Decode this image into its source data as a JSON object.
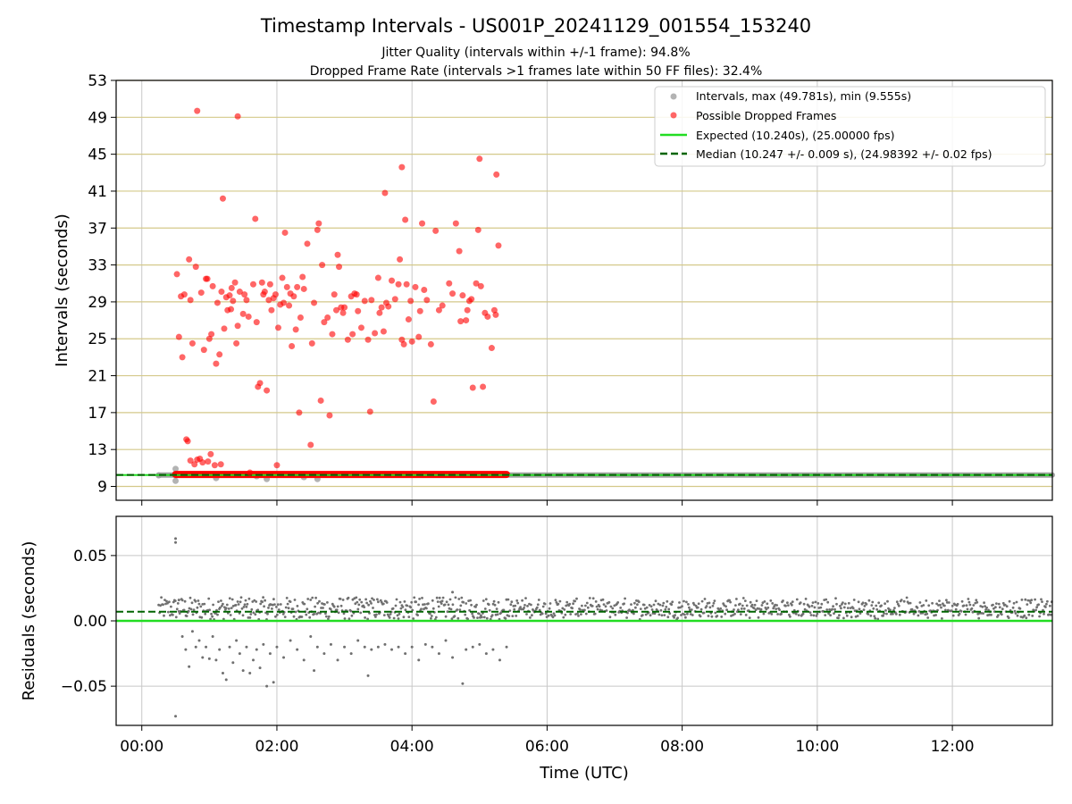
{
  "figure": {
    "title": "Timestamp Intervals - US001P_20241129_001554_153240",
    "subtitle_1": "Jitter Quality (intervals within +/-1 frame): 94.8%",
    "subtitle_2": "Dropped Frame Rate (intervals >1 frames late within 50 FF files): 32.4%"
  },
  "colors": {
    "intervals": "#999999",
    "dropped": "#ff0000",
    "expected": "#22dd22",
    "median": "#006400",
    "hgrid_top": "#d4c98a",
    "grid": "#c8c8c8",
    "residual_points": "#707070"
  },
  "chart_data": [
    {
      "type": "scatter",
      "panel": "top",
      "xlabel": "",
      "ylabel": "Intervals (seconds)",
      "x_unit": "hours (UTC)",
      "xlim": [
        -0.38,
        13.48
      ],
      "ylim": [
        7.5,
        53
      ],
      "x_ticks": [
        0,
        2,
        4,
        6,
        8,
        10,
        12
      ],
      "y_ticks": [
        9,
        13,
        17,
        21,
        25,
        29,
        33,
        37,
        41,
        45,
        49,
        53
      ],
      "y_tick_labels": [
        "9",
        "13",
        "17",
        "21",
        "25",
        "29",
        "33",
        "37",
        "41",
        "45",
        "49",
        "53"
      ],
      "grid": true,
      "legend_position": "top-right",
      "legend": [
        {
          "label": "Intervals, max (49.781s), min (9.555s)",
          "kind": "marker",
          "color": "#999999"
        },
        {
          "label": "Possible Dropped Frames",
          "kind": "marker",
          "color": "#ff0000"
        },
        {
          "label": "Expected (10.240s), (25.00000 fps)",
          "kind": "line",
          "color": "#22dd22"
        },
        {
          "label": "Median (10.247 +/- 0.009 s), (24.98392 +/- 0.02 fps)",
          "kind": "dashed",
          "color": "#006400"
        }
      ],
      "expected_value": 10.24,
      "median_value": 10.247,
      "intervals_band": {
        "x_start": 0.25,
        "x_end": 13.48,
        "value": 10.24
      },
      "dropped_band": {
        "x_start": 0.5,
        "x_end": 5.4,
        "value": 10.3
      },
      "series": [
        {
          "name": "Intervals, max (49.781s), min (9.555s)",
          "points": [
            [
              0.25,
              10.2
            ],
            [
              0.5,
              10.9
            ],
            [
              0.5,
              9.6
            ],
            [
              1.1,
              9.9
            ],
            [
              1.7,
              10.1
            ],
            [
              1.85,
              9.8
            ],
            [
              2.6,
              9.8
            ],
            [
              2.4,
              10.0
            ]
          ]
        },
        {
          "name": "Possible Dropped Frames",
          "points": [
            [
              0.52,
              32.0
            ],
            [
              0.55,
              25.2
            ],
            [
              0.58,
              29.6
            ],
            [
              0.6,
              23.0
            ],
            [
              0.63,
              29.8
            ],
            [
              0.66,
              14.1
            ],
            [
              0.68,
              13.9
            ],
            [
              0.7,
              33.6
            ],
            [
              0.72,
              29.2
            ],
            [
              0.72,
              11.8
            ],
            [
              0.75,
              24.5
            ],
            [
              0.78,
              11.4
            ],
            [
              0.8,
              32.8
            ],
            [
              0.82,
              11.9
            ],
            [
              0.82,
              49.7
            ],
            [
              0.86,
              12.0
            ],
            [
              0.88,
              30.0
            ],
            [
              0.9,
              11.6
            ],
            [
              0.92,
              23.8
            ],
            [
              0.95,
              31.5
            ],
            [
              0.97,
              31.5
            ],
            [
              0.98,
              11.7
            ],
            [
              1.0,
              25.0
            ],
            [
              1.02,
              12.5
            ],
            [
              1.03,
              25.5
            ],
            [
              1.05,
              30.7
            ],
            [
              1.08,
              11.3
            ],
            [
              1.1,
              22.3
            ],
            [
              1.12,
              28.9
            ],
            [
              1.15,
              23.3
            ],
            [
              1.17,
              11.4
            ],
            [
              1.18,
              30.1
            ],
            [
              1.2,
              40.2
            ],
            [
              1.22,
              26.1
            ],
            [
              1.25,
              29.5
            ],
            [
              1.27,
              28.1
            ],
            [
              1.3,
              29.7
            ],
            [
              1.32,
              28.2
            ],
            [
              1.33,
              30.5
            ],
            [
              1.35,
              29.1
            ],
            [
              1.38,
              31.1
            ],
            [
              1.4,
              24.5
            ],
            [
              1.42,
              26.4
            ],
            [
              1.42,
              49.1
            ],
            [
              1.45,
              30.1
            ],
            [
              1.5,
              27.7
            ],
            [
              1.52,
              29.8
            ],
            [
              1.55,
              29.2
            ],
            [
              1.58,
              27.4
            ],
            [
              1.6,
              10.5
            ],
            [
              1.65,
              30.9
            ],
            [
              1.68,
              38.0
            ],
            [
              1.7,
              26.8
            ],
            [
              1.72,
              19.8
            ],
            [
              1.75,
              20.2
            ],
            [
              1.78,
              31.1
            ],
            [
              1.8,
              29.8
            ],
            [
              1.82,
              30.1
            ],
            [
              1.85,
              19.4
            ],
            [
              1.88,
              29.2
            ],
            [
              1.9,
              30.9
            ],
            [
              1.92,
              28.1
            ],
            [
              1.95,
              29.4
            ],
            [
              1.98,
              29.8
            ],
            [
              2.0,
              11.3
            ],
            [
              2.02,
              26.2
            ],
            [
              2.05,
              28.7
            ],
            [
              2.08,
              31.6
            ],
            [
              2.1,
              28.9
            ],
            [
              2.12,
              36.5
            ],
            [
              2.15,
              30.6
            ],
            [
              2.18,
              28.6
            ],
            [
              2.2,
              29.9
            ],
            [
              2.22,
              24.2
            ],
            [
              2.25,
              29.6
            ],
            [
              2.28,
              26.0
            ],
            [
              2.3,
              30.6
            ],
            [
              2.33,
              17.0
            ],
            [
              2.35,
              27.3
            ],
            [
              2.38,
              31.7
            ],
            [
              2.4,
              30.4
            ],
            [
              2.45,
              35.3
            ],
            [
              2.5,
              13.5
            ],
            [
              2.52,
              24.5
            ],
            [
              2.55,
              28.9
            ],
            [
              2.6,
              36.8
            ],
            [
              2.62,
              37.5
            ],
            [
              2.65,
              18.3
            ],
            [
              2.67,
              33.0
            ],
            [
              2.7,
              26.8
            ],
            [
              2.75,
              27.3
            ],
            [
              2.78,
              16.7
            ],
            [
              2.82,
              25.5
            ],
            [
              2.85,
              29.8
            ],
            [
              2.88,
              28.1
            ],
            [
              2.9,
              34.1
            ],
            [
              2.92,
              32.8
            ],
            [
              2.95,
              28.4
            ],
            [
              2.98,
              27.8
            ],
            [
              3.0,
              28.4
            ],
            [
              3.05,
              24.9
            ],
            [
              3.1,
              29.6
            ],
            [
              3.12,
              25.5
            ],
            [
              3.15,
              29.9
            ],
            [
              3.18,
              29.8
            ],
            [
              3.2,
              28.0
            ],
            [
              3.25,
              26.2
            ],
            [
              3.3,
              29.1
            ],
            [
              3.35,
              24.9
            ],
            [
              3.38,
              17.1
            ],
            [
              3.4,
              29.2
            ],
            [
              3.45,
              25.6
            ],
            [
              3.5,
              31.6
            ],
            [
              3.52,
              27.8
            ],
            [
              3.55,
              28.4
            ],
            [
              3.58,
              25.8
            ],
            [
              3.6,
              40.8
            ],
            [
              3.62,
              28.9
            ],
            [
              3.65,
              28.5
            ],
            [
              3.7,
              31.3
            ],
            [
              3.75,
              29.3
            ],
            [
              3.8,
              30.9
            ],
            [
              3.82,
              33.6
            ],
            [
              3.85,
              24.9
            ],
            [
              3.85,
              43.6
            ],
            [
              3.88,
              24.4
            ],
            [
              3.9,
              37.9
            ],
            [
              3.92,
              30.9
            ],
            [
              3.95,
              27.1
            ],
            [
              3.98,
              29.1
            ],
            [
              4.0,
              24.7
            ],
            [
              4.05,
              30.6
            ],
            [
              4.1,
              25.2
            ],
            [
              4.12,
              28.0
            ],
            [
              4.15,
              37.5
            ],
            [
              4.18,
              30.3
            ],
            [
              4.22,
              29.2
            ],
            [
              4.28,
              24.4
            ],
            [
              4.32,
              18.2
            ],
            [
              4.35,
              36.7
            ],
            [
              4.4,
              28.1
            ],
            [
              4.45,
              28.6
            ],
            [
              4.55,
              31.0
            ],
            [
              4.6,
              29.9
            ],
            [
              4.65,
              37.5
            ],
            [
              4.7,
              34.5
            ],
            [
              4.72,
              26.9
            ],
            [
              4.75,
              29.7
            ],
            [
              4.8,
              27.0
            ],
            [
              4.82,
              28.1
            ],
            [
              4.85,
              29.1
            ],
            [
              4.88,
              29.3
            ],
            [
              4.9,
              19.7
            ],
            [
              4.95,
              31.0
            ],
            [
              4.98,
              36.8
            ],
            [
              5.0,
              44.5
            ],
            [
              5.02,
              30.7
            ],
            [
              5.05,
              19.8
            ],
            [
              5.08,
              27.8
            ],
            [
              5.12,
              27.4
            ],
            [
              5.18,
              24.0
            ],
            [
              5.22,
              28.1
            ],
            [
              5.24,
              27.6
            ],
            [
              5.25,
              42.8
            ],
            [
              5.28,
              35.1
            ]
          ]
        },
        {
          "name": "Expected (10.240s), (25.00000 fps)",
          "values": [
            10.24
          ]
        },
        {
          "name": "Median (10.247 +/- 0.009 s), (24.98392 +/- 0.02 fps)",
          "values": [
            10.247
          ]
        }
      ]
    },
    {
      "type": "scatter",
      "panel": "bottom",
      "xlabel": "Time (UTC)",
      "ylabel": "Residuals (seconds)",
      "xlim": [
        -0.38,
        13.48
      ],
      "ylim": [
        -0.08,
        0.08
      ],
      "x_ticks": [
        0,
        2,
        4,
        6,
        8,
        10,
        12
      ],
      "x_tick_labels": [
        "00:00",
        "02:00",
        "04:00",
        "06:00",
        "08:00",
        "10:00",
        "12:00"
      ],
      "y_ticks": [
        -0.05,
        0,
        0.05
      ],
      "y_tick_labels": [
        "−0.05",
        "0.00",
        "0.05"
      ],
      "grid": true,
      "expected_value": 0.0,
      "median_value": 0.007,
      "residual_band": {
        "x_start": 0.25,
        "x_end": 13.48,
        "low": 0.001,
        "high": 0.018
      },
      "outliers": [
        [
          0.5,
          0.063
        ],
        [
          0.5,
          0.06
        ],
        [
          0.5,
          -0.073
        ],
        [
          0.55,
          0.016
        ],
        [
          0.6,
          -0.012
        ],
        [
          0.65,
          -0.022
        ],
        [
          0.7,
          -0.035
        ],
        [
          0.75,
          -0.008
        ],
        [
          0.8,
          -0.02
        ],
        [
          0.85,
          -0.015
        ],
        [
          0.9,
          -0.028
        ],
        [
          0.95,
          -0.02
        ],
        [
          1.0,
          -0.029
        ],
        [
          1.05,
          -0.012
        ],
        [
          1.1,
          -0.03
        ],
        [
          1.15,
          -0.022
        ],
        [
          1.2,
          -0.04
        ],
        [
          1.25,
          -0.045
        ],
        [
          1.3,
          -0.02
        ],
        [
          1.35,
          -0.032
        ],
        [
          1.4,
          -0.015
        ],
        [
          1.45,
          -0.025
        ],
        [
          1.5,
          -0.038
        ],
        [
          1.55,
          -0.02
        ],
        [
          1.6,
          -0.04
        ],
        [
          1.65,
          -0.03
        ],
        [
          1.7,
          -0.022
        ],
        [
          1.75,
          -0.036
        ],
        [
          1.8,
          -0.018
        ],
        [
          1.85,
          -0.05
        ],
        [
          1.9,
          -0.025
        ],
        [
          1.95,
          -0.047
        ],
        [
          2.0,
          -0.02
        ],
        [
          2.1,
          -0.028
        ],
        [
          2.2,
          -0.015
        ],
        [
          2.3,
          -0.022
        ],
        [
          2.4,
          -0.03
        ],
        [
          2.5,
          -0.012
        ],
        [
          2.55,
          -0.038
        ],
        [
          2.6,
          -0.02
        ],
        [
          2.7,
          -0.025
        ],
        [
          2.8,
          -0.018
        ],
        [
          2.9,
          -0.03
        ],
        [
          3.0,
          -0.02
        ],
        [
          3.1,
          -0.025
        ],
        [
          3.2,
          -0.015
        ],
        [
          3.3,
          -0.02
        ],
        [
          3.35,
          -0.042
        ],
        [
          3.4,
          -0.022
        ],
        [
          3.5,
          -0.02
        ],
        [
          3.6,
          -0.018
        ],
        [
          3.7,
          -0.022
        ],
        [
          3.8,
          -0.02
        ],
        [
          3.9,
          -0.025
        ],
        [
          4.0,
          -0.02
        ],
        [
          4.1,
          -0.03
        ],
        [
          4.2,
          -0.018
        ],
        [
          4.3,
          -0.02
        ],
        [
          4.4,
          -0.025
        ],
        [
          4.5,
          -0.015
        ],
        [
          4.6,
          -0.028
        ],
        [
          4.75,
          -0.048
        ],
        [
          4.8,
          -0.022
        ],
        [
          4.9,
          -0.02
        ],
        [
          5.0,
          -0.018
        ],
        [
          5.1,
          -0.025
        ],
        [
          5.2,
          -0.022
        ],
        [
          5.3,
          -0.03
        ],
        [
          5.4,
          -0.02
        ],
        [
          4.6,
          0.022
        ]
      ]
    }
  ]
}
